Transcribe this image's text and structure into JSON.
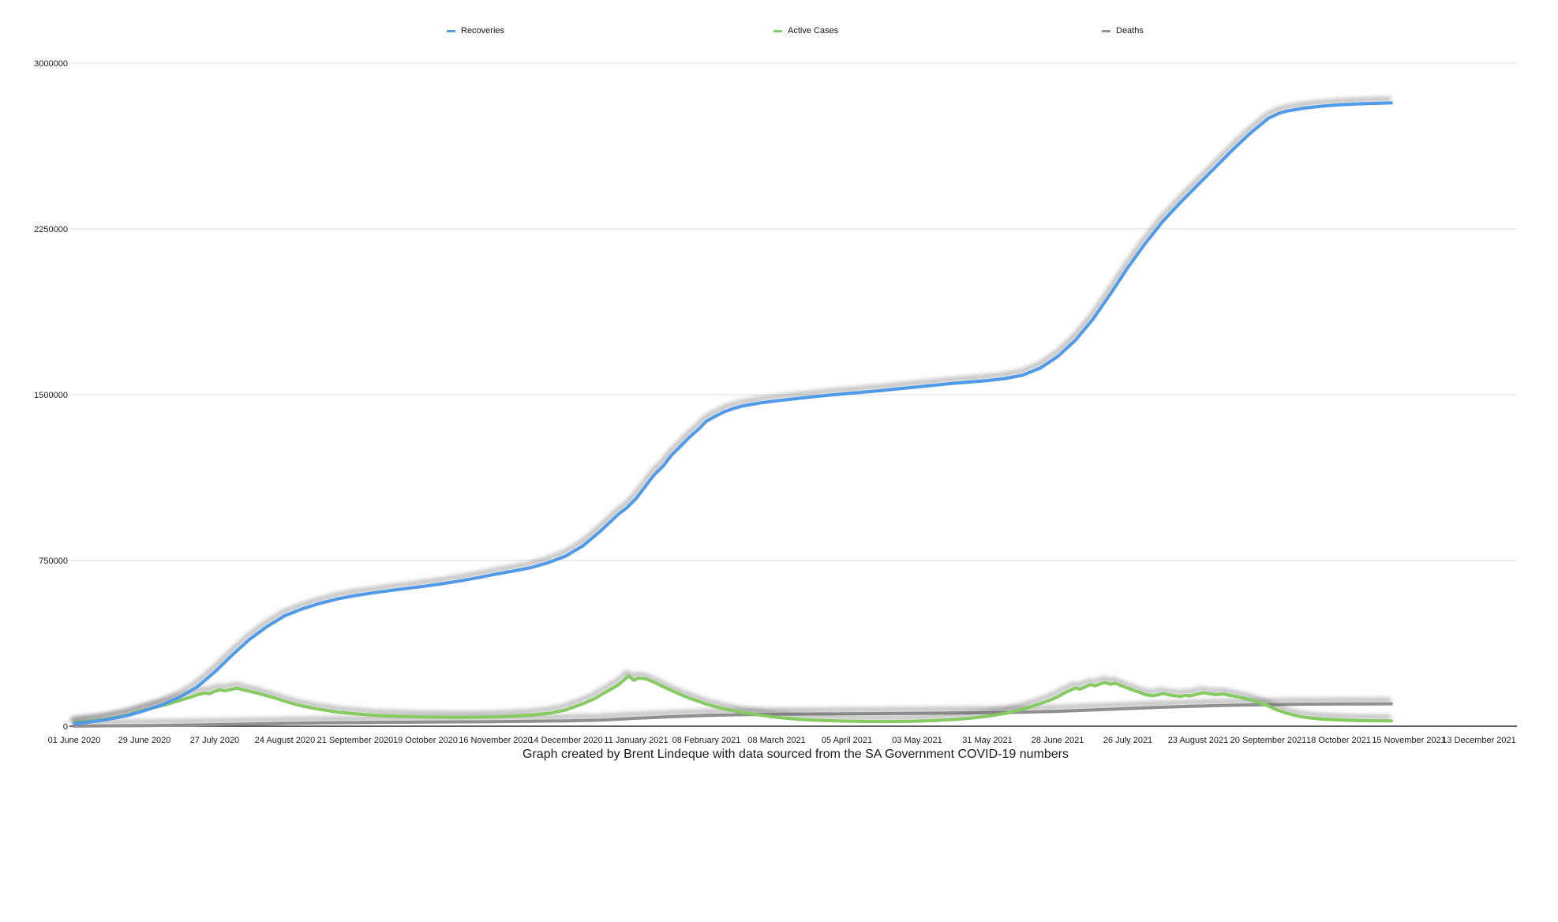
{
  "legend": {
    "items": [
      {
        "label": "Recoveries",
        "color": "#4f9bea"
      },
      {
        "label": "Active Cases",
        "color": "#85cb60"
      },
      {
        "label": "Deaths",
        "color": "#909090"
      }
    ]
  },
  "caption": "Graph created by Brent Lindeque with data sourced from the SA Government COVID-19 numbers",
  "chart_data": {
    "type": "line",
    "title": "",
    "legend_position": "top",
    "grid": true,
    "grid_color": "#dcdcdc",
    "axis_color": "#2a2a2a",
    "x_axis": {
      "unit": "days since 01 June 2020",
      "tick_interval_days": 28,
      "tick_labels": [
        "01 June 2020",
        "29 June 2020",
        "27 July 2020",
        "24 August 2020",
        "21 September 2020",
        "19 October 2020",
        "16 November 2020",
        "14 December 2020",
        "11 January 2021",
        "08 February 2021",
        "08 March 2021",
        "05 April 2021",
        "03 May 2021",
        "31 May 2021",
        "28 June 2021",
        "26 July 2021",
        "23 August 2021",
        "20 September 2021",
        "18 October 2021",
        "15 November 2021",
        "13 December 2021"
      ]
    },
    "y_axis": {
      "range": [
        0,
        3000000
      ],
      "ticks": [
        0,
        750000,
        1500000,
        2250000,
        3000000
      ]
    },
    "series": [
      {
        "name": "Recoveries",
        "color": "#4f9bea",
        "points": [
          [
            0,
            12000
          ],
          [
            7,
            20000
          ],
          [
            14,
            32000
          ],
          [
            21,
            48000
          ],
          [
            28,
            70000
          ],
          [
            35,
            97000
          ],
          [
            42,
            131000
          ],
          [
            49,
            178000
          ],
          [
            56,
            245000
          ],
          [
            63,
            322000
          ],
          [
            70,
            394000
          ],
          [
            77,
            452000
          ],
          [
            84,
            500000
          ],
          [
            91,
            531000
          ],
          [
            98,
            556000
          ],
          [
            105,
            576000
          ],
          [
            112,
            591000
          ],
          [
            119,
            603000
          ],
          [
            126,
            614000
          ],
          [
            133,
            624000
          ],
          [
            140,
            634000
          ],
          [
            147,
            645000
          ],
          [
            154,
            658000
          ],
          [
            161,
            672000
          ],
          [
            168,
            688000
          ],
          [
            175,
            702000
          ],
          [
            182,
            717000
          ],
          [
            189,
            740000
          ],
          [
            196,
            770000
          ],
          [
            203,
            818000
          ],
          [
            210,
            885000
          ],
          [
            217,
            960000
          ],
          [
            220,
            985000
          ],
          [
            224,
            1030000
          ],
          [
            228,
            1090000
          ],
          [
            231,
            1135000
          ],
          [
            235,
            1180000
          ],
          [
            238,
            1225000
          ],
          [
            242,
            1270000
          ],
          [
            245,
            1305000
          ],
          [
            249,
            1345000
          ],
          [
            252,
            1380000
          ],
          [
            256,
            1405000
          ],
          [
            259,
            1422000
          ],
          [
            263,
            1438000
          ],
          [
            266,
            1448000
          ],
          [
            273,
            1462000
          ],
          [
            280,
            1472000
          ],
          [
            287,
            1481000
          ],
          [
            294,
            1490000
          ],
          [
            301,
            1498000
          ],
          [
            308,
            1505000
          ],
          [
            315,
            1512000
          ],
          [
            322,
            1519000
          ],
          [
            329,
            1527000
          ],
          [
            336,
            1535000
          ],
          [
            343,
            1543000
          ],
          [
            350,
            1551000
          ],
          [
            357,
            1557000
          ],
          [
            364,
            1564000
          ],
          [
            371,
            1573000
          ],
          [
            378,
            1588000
          ],
          [
            385,
            1620000
          ],
          [
            392,
            1672000
          ],
          [
            399,
            1745000
          ],
          [
            406,
            1840000
          ],
          [
            413,
            1955000
          ],
          [
            420,
            2075000
          ],
          [
            427,
            2185000
          ],
          [
            434,
            2285000
          ],
          [
            441,
            2370000
          ],
          [
            448,
            2450000
          ],
          [
            455,
            2530000
          ],
          [
            462,
            2610000
          ],
          [
            469,
            2685000
          ],
          [
            476,
            2750000
          ],
          [
            480,
            2772000
          ],
          [
            483,
            2782000
          ],
          [
            490,
            2796000
          ],
          [
            497,
            2805000
          ],
          [
            504,
            2811000
          ],
          [
            511,
            2815000
          ],
          [
            518,
            2818000
          ],
          [
            525,
            2820000
          ]
        ]
      },
      {
        "name": "Active Cases",
        "color": "#85cb60",
        "points": [
          [
            0,
            16000
          ],
          [
            7,
            24000
          ],
          [
            14,
            34000
          ],
          [
            21,
            50000
          ],
          [
            28,
            74000
          ],
          [
            35,
            93000
          ],
          [
            42,
            116000
          ],
          [
            46,
            130000
          ],
          [
            49,
            142000
          ],
          [
            52,
            150000
          ],
          [
            54,
            147000
          ],
          [
            56,
            158000
          ],
          [
            58,
            165000
          ],
          [
            60,
            160000
          ],
          [
            63,
            168000
          ],
          [
            65,
            172000
          ],
          [
            67,
            166000
          ],
          [
            70,
            158000
          ],
          [
            73,
            150000
          ],
          [
            77,
            137000
          ],
          [
            80,
            128000
          ],
          [
            84,
            113000
          ],
          [
            88,
            100000
          ],
          [
            91,
            91000
          ],
          [
            98,
            76000
          ],
          [
            105,
            64000
          ],
          [
            112,
            56000
          ],
          [
            119,
            50000
          ],
          [
            126,
            46000
          ],
          [
            133,
            43500
          ],
          [
            140,
            42000
          ],
          [
            147,
            41000
          ],
          [
            154,
            40500
          ],
          [
            161,
            41000
          ],
          [
            168,
            42500
          ],
          [
            175,
            45500
          ],
          [
            182,
            50000
          ],
          [
            189,
            58000
          ],
          [
            196,
            74000
          ],
          [
            203,
            103000
          ],
          [
            207,
            122000
          ],
          [
            210,
            142000
          ],
          [
            214,
            168000
          ],
          [
            217,
            188000
          ],
          [
            221,
            228000
          ],
          [
            223,
            208000
          ],
          [
            225,
            218000
          ],
          [
            228,
            214000
          ],
          [
            231,
            200000
          ],
          [
            235,
            178000
          ],
          [
            238,
            162000
          ],
          [
            242,
            142000
          ],
          [
            245,
            128000
          ],
          [
            249,
            112000
          ],
          [
            252,
            100000
          ],
          [
            256,
            88000
          ],
          [
            259,
            79000
          ],
          [
            263,
            70000
          ],
          [
            266,
            63000
          ],
          [
            273,
            51000
          ],
          [
            280,
            40000
          ],
          [
            287,
            33000
          ],
          [
            294,
            28000
          ],
          [
            301,
            25000
          ],
          [
            308,
            23000
          ],
          [
            315,
            21500
          ],
          [
            322,
            21000
          ],
          [
            329,
            21500
          ],
          [
            336,
            23000
          ],
          [
            343,
            26000
          ],
          [
            350,
            30000
          ],
          [
            357,
            36000
          ],
          [
            364,
            45000
          ],
          [
            371,
            58000
          ],
          [
            378,
            76000
          ],
          [
            385,
            102000
          ],
          [
            389,
            118000
          ],
          [
            392,
            133000
          ],
          [
            395,
            152000
          ],
          [
            397,
            162000
          ],
          [
            399,
            173000
          ],
          [
            401,
            168000
          ],
          [
            403,
            178000
          ],
          [
            405,
            188000
          ],
          [
            407,
            183000
          ],
          [
            409,
            192000
          ],
          [
            411,
            198000
          ],
          [
            413,
            190000
          ],
          [
            415,
            195000
          ],
          [
            417,
            185000
          ],
          [
            420,
            172000
          ],
          [
            423,
            160000
          ],
          [
            425,
            152000
          ],
          [
            427,
            143000
          ],
          [
            430,
            138000
          ],
          [
            432,
            142000
          ],
          [
            434,
            148000
          ],
          [
            436,
            143000
          ],
          [
            438,
            139000
          ],
          [
            441,
            135000
          ],
          [
            443,
            140000
          ],
          [
            445,
            137000
          ],
          [
            448,
            146000
          ],
          [
            450,
            151000
          ],
          [
            452,
            148000
          ],
          [
            455,
            143000
          ],
          [
            458,
            146000
          ],
          [
            460,
            141000
          ],
          [
            462,
            137000
          ],
          [
            465,
            130000
          ],
          [
            469,
            119000
          ],
          [
            472,
            108000
          ],
          [
            476,
            92000
          ],
          [
            479,
            76000
          ],
          [
            483,
            60000
          ],
          [
            487,
            48000
          ],
          [
            490,
            41000
          ],
          [
            494,
            36000
          ],
          [
            497,
            32500
          ],
          [
            504,
            28500
          ],
          [
            511,
            26000
          ],
          [
            518,
            24500
          ],
          [
            525,
            24000
          ]
        ]
      },
      {
        "name": "Deaths",
        "color": "#909090",
        "points": [
          [
            0,
            800
          ],
          [
            14,
            1700
          ],
          [
            28,
            2800
          ],
          [
            42,
            4700
          ],
          [
            56,
            7000
          ],
          [
            70,
            9900
          ],
          [
            84,
            13000
          ],
          [
            98,
            15000
          ],
          [
            112,
            16300
          ],
          [
            126,
            17800
          ],
          [
            140,
            18800
          ],
          [
            154,
            19800
          ],
          [
            168,
            20800
          ],
          [
            182,
            22000
          ],
          [
            196,
            24000
          ],
          [
            210,
            28000
          ],
          [
            224,
            36000
          ],
          [
            238,
            43000
          ],
          [
            252,
            48800
          ],
          [
            266,
            52000
          ],
          [
            280,
            54200
          ],
          [
            294,
            55500
          ],
          [
            308,
            56500
          ],
          [
            322,
            57500
          ],
          [
            336,
            58500
          ],
          [
            350,
            59500
          ],
          [
            364,
            61000
          ],
          [
            378,
            63500
          ],
          [
            392,
            67500
          ],
          [
            406,
            73500
          ],
          [
            420,
            80000
          ],
          [
            434,
            86000
          ],
          [
            448,
            91000
          ],
          [
            462,
            95000
          ],
          [
            476,
            98000
          ],
          [
            490,
            99500
          ],
          [
            504,
            100500
          ],
          [
            518,
            101000
          ],
          [
            525,
            101300
          ]
        ]
      }
    ]
  }
}
